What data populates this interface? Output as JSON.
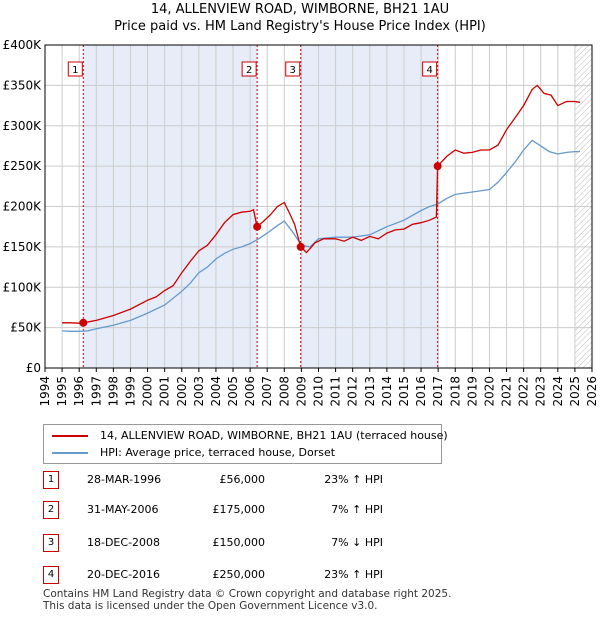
{
  "header": {
    "title": "14, ALLENVIEW ROAD, WIMBORNE, BH21 1AU",
    "subtitle": "Price paid vs. HM Land Registry's House Price Index (HPI)"
  },
  "colors": {
    "property": "#cc0000",
    "hpi": "#6699cc",
    "shade": "#dde6f5",
    "grid": "#cccccc"
  },
  "chart_data": {
    "type": "line",
    "title": "Price paid vs. HM Land Registry's House Price Index (HPI)",
    "xlim": [
      1994,
      2026
    ],
    "ylim": [
      0,
      400000
    ],
    "x_ticks": [
      1994,
      1995,
      1996,
      1997,
      1998,
      1999,
      2000,
      2001,
      2002,
      2003,
      2004,
      2005,
      2006,
      2007,
      2008,
      2009,
      2010,
      2011,
      2012,
      2013,
      2014,
      2015,
      2016,
      2017,
      2018,
      2019,
      2020,
      2021,
      2022,
      2023,
      2024,
      2025,
      2026
    ],
    "y_ticks": [
      {
        "value": 0,
        "label": "£0"
      },
      {
        "value": 50000,
        "label": "£50K"
      },
      {
        "value": 100000,
        "label": "£100K"
      },
      {
        "value": 150000,
        "label": "£150K"
      },
      {
        "value": 200000,
        "label": "£200K"
      },
      {
        "value": 250000,
        "label": "£250K"
      },
      {
        "value": 300000,
        "label": "£300K"
      },
      {
        "value": 350000,
        "label": "£350K"
      },
      {
        "value": 400000,
        "label": "£400K"
      }
    ],
    "shaded_ranges": [
      [
        1996.24,
        2006.41
      ],
      [
        2008.96,
        2016.97
      ]
    ],
    "future_hatch_start": 2025.0,
    "series": [
      {
        "name": "14, ALLENVIEW ROAD, WIMBORNE, BH21 1AU (terraced house)",
        "color": "#cc0000",
        "points": [
          [
            1995.0,
            56000
          ],
          [
            1995.5,
            56000
          ],
          [
            1996.0,
            55500
          ],
          [
            1996.24,
            56000
          ],
          [
            1997.0,
            59000
          ],
          [
            1998.0,
            65000
          ],
          [
            1999.0,
            73000
          ],
          [
            2000.0,
            84000
          ],
          [
            2000.5,
            88000
          ],
          [
            2001.0,
            96000
          ],
          [
            2001.5,
            102000
          ],
          [
            2002.0,
            118000
          ],
          [
            2002.5,
            132000
          ],
          [
            2003.0,
            145000
          ],
          [
            2003.5,
            152000
          ],
          [
            2004.0,
            165000
          ],
          [
            2004.5,
            180000
          ],
          [
            2005.0,
            190000
          ],
          [
            2005.5,
            193000
          ],
          [
            2006.0,
            194000
          ],
          [
            2006.2,
            196000
          ],
          [
            2006.41,
            175000
          ],
          [
            2006.8,
            182000
          ],
          [
            2007.2,
            190000
          ],
          [
            2007.6,
            200000
          ],
          [
            2008.0,
            205000
          ],
          [
            2008.3,
            192000
          ],
          [
            2008.6,
            178000
          ],
          [
            2008.96,
            150000
          ],
          [
            2009.3,
            143000
          ],
          [
            2009.8,
            155000
          ],
          [
            2010.3,
            160000
          ],
          [
            2011.0,
            160000
          ],
          [
            2011.5,
            157000
          ],
          [
            2012.0,
            162000
          ],
          [
            2012.5,
            158000
          ],
          [
            2013.0,
            163000
          ],
          [
            2013.5,
            160000
          ],
          [
            2014.0,
            167000
          ],
          [
            2014.5,
            171000
          ],
          [
            2015.0,
            172000
          ],
          [
            2015.5,
            178000
          ],
          [
            2016.0,
            180000
          ],
          [
            2016.5,
            183000
          ],
          [
            2016.9,
            187000
          ],
          [
            2016.97,
            250000
          ],
          [
            2017.5,
            262000
          ],
          [
            2018.0,
            270000
          ],
          [
            2018.5,
            266000
          ],
          [
            2019.0,
            267000
          ],
          [
            2019.5,
            270000
          ],
          [
            2020.0,
            270000
          ],
          [
            2020.5,
            276000
          ],
          [
            2021.0,
            295000
          ],
          [
            2021.5,
            310000
          ],
          [
            2022.0,
            325000
          ],
          [
            2022.5,
            345000
          ],
          [
            2022.8,
            350000
          ],
          [
            2023.2,
            340000
          ],
          [
            2023.6,
            338000
          ],
          [
            2024.0,
            325000
          ],
          [
            2024.5,
            330000
          ],
          [
            2025.0,
            330000
          ],
          [
            2025.3,
            329000
          ]
        ]
      },
      {
        "name": "HPI: Average price, terraced house, Dorset",
        "color": "#6699cc",
        "points": [
          [
            1995.0,
            46000
          ],
          [
            1995.5,
            45500
          ],
          [
            1996.0,
            45500
          ],
          [
            1996.5,
            46000
          ],
          [
            1997.0,
            48500
          ],
          [
            1998.0,
            53000
          ],
          [
            1999.0,
            59000
          ],
          [
            2000.0,
            68000
          ],
          [
            2001.0,
            78000
          ],
          [
            2002.0,
            95000
          ],
          [
            2002.5,
            105000
          ],
          [
            2003.0,
            118000
          ],
          [
            2003.5,
            125000
          ],
          [
            2004.0,
            135000
          ],
          [
            2004.5,
            142000
          ],
          [
            2005.0,
            147000
          ],
          [
            2005.5,
            150000
          ],
          [
            2006.0,
            154000
          ],
          [
            2006.5,
            160000
          ],
          [
            2007.0,
            167000
          ],
          [
            2007.5,
            175000
          ],
          [
            2008.0,
            182000
          ],
          [
            2008.5,
            168000
          ],
          [
            2009.0,
            152000
          ],
          [
            2009.5,
            150000
          ],
          [
            2010.0,
            160000
          ],
          [
            2011.0,
            162000
          ],
          [
            2012.0,
            162000
          ],
          [
            2013.0,
            165000
          ],
          [
            2014.0,
            175000
          ],
          [
            2015.0,
            183000
          ],
          [
            2016.0,
            195000
          ],
          [
            2016.5,
            200000
          ],
          [
            2016.97,
            203000
          ],
          [
            2017.5,
            210000
          ],
          [
            2018.0,
            215000
          ],
          [
            2019.0,
            218000
          ],
          [
            2020.0,
            221000
          ],
          [
            2020.5,
            230000
          ],
          [
            2021.0,
            242000
          ],
          [
            2021.5,
            255000
          ],
          [
            2022.0,
            270000
          ],
          [
            2022.5,
            282000
          ],
          [
            2023.0,
            275000
          ],
          [
            2023.5,
            268000
          ],
          [
            2024.0,
            265000
          ],
          [
            2024.5,
            267000
          ],
          [
            2025.0,
            268000
          ],
          [
            2025.3,
            268000
          ]
        ]
      }
    ],
    "sales": [
      {
        "num": "1",
        "x": 1996.24,
        "price": 56000
      },
      {
        "num": "2",
        "x": 2006.41,
        "price": 175000
      },
      {
        "num": "3",
        "x": 2008.96,
        "price": 150000
      },
      {
        "num": "4",
        "x": 2016.97,
        "price": 250000
      }
    ]
  },
  "legend": {
    "property_label": "14, ALLENVIEW ROAD, WIMBORNE, BH21 1AU (terraced house)",
    "hpi_label": "HPI: Average price, terraced house, Dorset"
  },
  "sales_table": [
    {
      "num": "1",
      "date": "28-MAR-1996",
      "price": "£56,000",
      "hpi": "23% ↑ HPI"
    },
    {
      "num": "2",
      "date": "31-MAY-2006",
      "price": "£175,000",
      "hpi": "7% ↑ HPI"
    },
    {
      "num": "3",
      "date": "18-DEC-2008",
      "price": "£150,000",
      "hpi": "7% ↓ HPI"
    },
    {
      "num": "4",
      "date": "20-DEC-2016",
      "price": "£250,000",
      "hpi": "23% ↑ HPI"
    }
  ],
  "footer": {
    "line1": "Contains HM Land Registry data © Crown copyright and database right 2025.",
    "line2": "This data is licensed under the Open Government Licence v3.0."
  }
}
